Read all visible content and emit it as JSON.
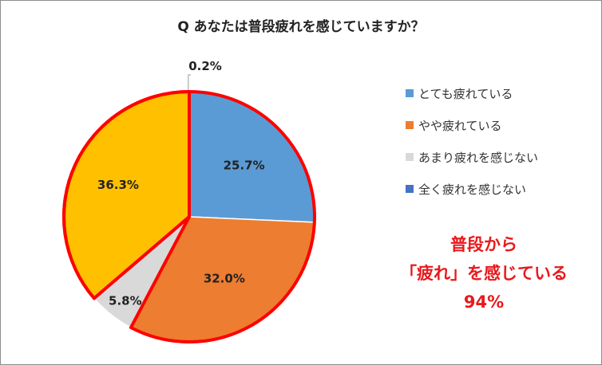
{
  "chart_data": {
    "type": "pie",
    "title": "Q あなたは普段疲れを感じていますか？",
    "categories": [
      "とても疲れている",
      "やや疲れている",
      "あまり疲れを感じない",
      "全く疲れを感じない"
    ],
    "values": [
      25.7,
      32.0,
      5.8,
      0.2
    ],
    "data_labels": [
      "25.7%",
      "32.0%",
      "5.8%",
      "0.2%"
    ],
    "highlight_label": "36.3%",
    "colors": [
      "#5b9bd5",
      "#ed7d31",
      "#d9d9d9",
      "#4472c4"
    ],
    "highlight_color": "#ffc000",
    "highlight_outline": "#ff0000",
    "legend_position": "right"
  },
  "callout": {
    "line1": "普段から",
    "line2": "「疲れ」を感じている",
    "line3": "94%"
  }
}
